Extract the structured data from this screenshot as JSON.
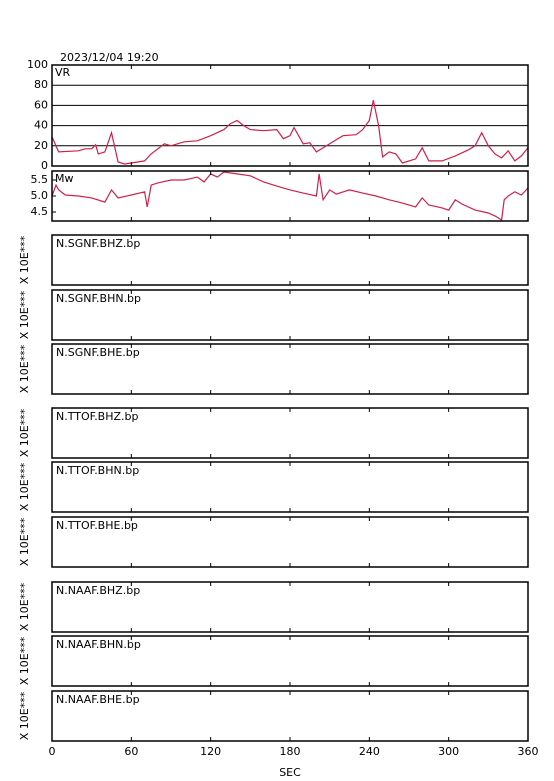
{
  "chart_data": [
    {
      "type": "line",
      "title": "2023/12/04  19:20",
      "label": "VR",
      "color": "#d0204a",
      "grid": true,
      "xlim": [
        0,
        360
      ],
      "ylim": [
        0,
        100
      ],
      "yticks": [
        0,
        20,
        40,
        60,
        80,
        100
      ],
      "x": [
        0,
        5,
        20,
        25,
        30,
        33,
        35,
        40,
        45,
        50,
        55,
        60,
        70,
        75,
        85,
        90,
        100,
        110,
        120,
        130,
        135,
        140,
        145,
        150,
        160,
        170,
        175,
        180,
        183,
        190,
        195,
        200,
        210,
        220,
        230,
        235,
        240,
        243,
        247,
        250,
        255,
        260,
        265,
        275,
        280,
        285,
        295,
        305,
        315,
        320,
        325,
        330,
        335,
        340,
        345,
        350,
        355,
        360
      ],
      "values": [
        29,
        14,
        15,
        17,
        17,
        21,
        12,
        14,
        33,
        4,
        2,
        3,
        5,
        12,
        22,
        20,
        24,
        25,
        30,
        36,
        42,
        45,
        40,
        36,
        35,
        36,
        27,
        30,
        38,
        22,
        23,
        14,
        22,
        30,
        31,
        36,
        45,
        65,
        40,
        9,
        14,
        12,
        3,
        7,
        18,
        5,
        5,
        10,
        16,
        20,
        33,
        20,
        12,
        8,
        15,
        5,
        10,
        18
      ]
    },
    {
      "type": "line",
      "label": "Mw",
      "color": "#d0204a",
      "grid": false,
      "xlim": [
        0,
        360
      ],
      "ylim": [
        4.22,
        5.78
      ],
      "yticks": [
        4.5,
        {
          "value": 5,
          "label": "5.0"
        },
        5.5
      ],
      "x": [
        0,
        3,
        5,
        10,
        20,
        30,
        40,
        45,
        50,
        60,
        70,
        72,
        75,
        80,
        90,
        100,
        110,
        115,
        120,
        125,
        130,
        140,
        150,
        160,
        170,
        180,
        190,
        200,
        202,
        205,
        210,
        215,
        225,
        235,
        245,
        255,
        265,
        275,
        280,
        285,
        295,
        300,
        305,
        310,
        320,
        330,
        335,
        340,
        342,
        345,
        350,
        355,
        360
      ],
      "values": [
        5.0,
        5.34,
        5.19,
        5.03,
        5.0,
        4.94,
        4.81,
        5.19,
        4.94,
        5.03,
        5.13,
        4.66,
        5.34,
        5.41,
        5.5,
        5.5,
        5.59,
        5.44,
        5.69,
        5.59,
        5.75,
        5.69,
        5.63,
        5.44,
        5.31,
        5.19,
        5.09,
        5.0,
        5.69,
        4.88,
        5.19,
        5.06,
        5.19,
        5.09,
        5.0,
        4.88,
        4.78,
        4.66,
        4.94,
        4.72,
        4.63,
        4.56,
        4.88,
        4.75,
        4.56,
        4.47,
        4.38,
        4.25,
        4.88,
        5.0,
        5.13,
        5.03,
        5.25
      ]
    }
  ],
  "stations": [
    {
      "label": "N.SGNF.BHZ.bp",
      "side_label": "X 10E***"
    },
    {
      "label": "N.SGNF.BHN.bp",
      "side_label": "X 10E***"
    },
    {
      "label": "N.SGNF.BHE.bp",
      "side_label": "X 10E***"
    },
    {
      "label": "N.TTOF.BHZ.bp",
      "side_label": "X 10E***"
    },
    {
      "label": "N.TTOF.BHN.bp",
      "side_label": "X 10E***"
    },
    {
      "label": "N.TTOF.BHE.bp",
      "side_label": "X 10E***"
    },
    {
      "label": "N.NAAF.BHZ.bp",
      "side_label": "X 10E***"
    },
    {
      "label": "N.NAAF.BHN.bp",
      "side_label": "X 10E***"
    },
    {
      "label": "N.NAAF.BHE.bp",
      "side_label": "X 10E***"
    }
  ],
  "x_axis": {
    "xlim": [
      0,
      360
    ],
    "xticks": [
      0,
      60,
      120,
      180,
      240,
      300,
      360
    ],
    "xlabel": "SEC"
  }
}
